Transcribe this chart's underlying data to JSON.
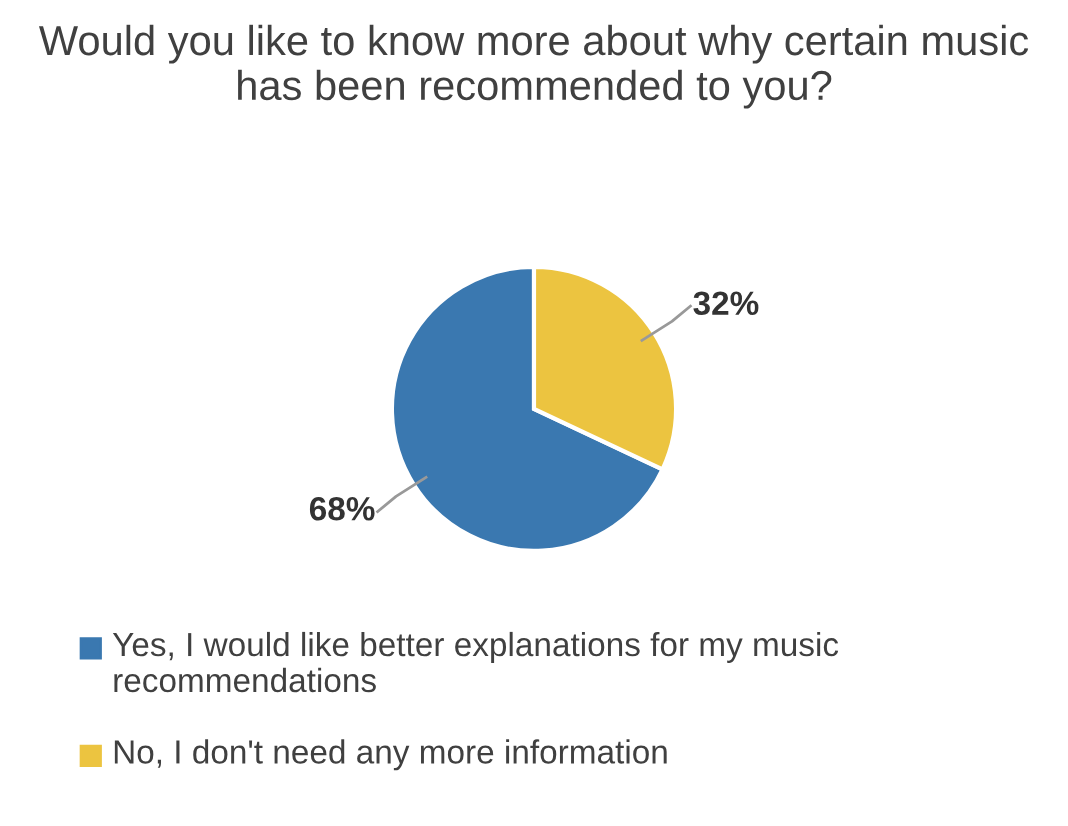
{
  "chart_data": {
    "type": "pie",
    "title": "Would you like to know more about why certain music has been recommended to you?",
    "categories": [
      "Yes, I would like better explanations for my music recommendations",
      "No, I don't need any more information"
    ],
    "values": [
      68,
      32
    ],
    "colors": [
      "#3a78b0",
      "#ecc440"
    ],
    "value_labels": [
      "68%",
      "32%"
    ],
    "legend": "bottom"
  }
}
